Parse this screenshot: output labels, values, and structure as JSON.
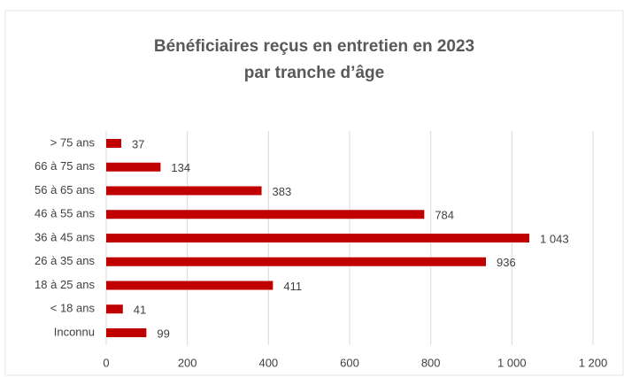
{
  "chart_data": {
    "type": "bar",
    "orientation": "horizontal",
    "title": [
      "Bénéficiaires reçus en entretien en 2023",
      "par tranche d’âge"
    ],
    "categories": [
      "> 75 ans",
      "66 à 75 ans",
      "56 à 65 ans",
      "46 à 55 ans",
      "36 à 45 ans",
      "26 à 35 ans",
      "18 à 25 ans",
      "< 18 ans",
      "Inconnu"
    ],
    "values": [
      37,
      134,
      383,
      784,
      1043,
      936,
      411,
      41,
      99
    ],
    "value_labels": [
      "37",
      "134",
      "383",
      "784",
      "1 043",
      "936",
      "411",
      "41",
      "99"
    ],
    "color": "#c00000",
    "xlim": [
      0,
      1200
    ],
    "xticks": [
      0,
      200,
      400,
      600,
      800,
      {
        "value": 1000,
        "label": "1 000"
      },
      {
        "value": 1200,
        "label": "1 200"
      }
    ],
    "grid": true
  }
}
